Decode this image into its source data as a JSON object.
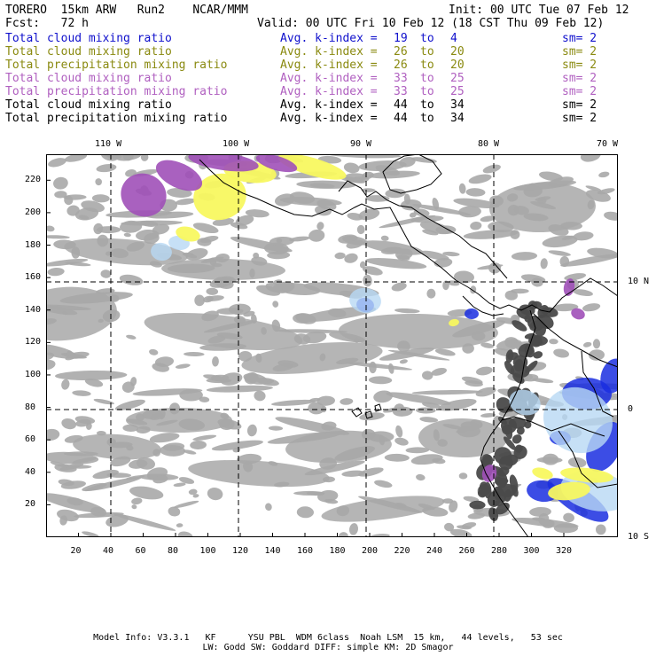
{
  "header": {
    "model": "TORERO  15km ARW   Run2    NCAR/MMM",
    "init": "Init: 00 UTC Tue 07 Feb 12",
    "fcst": "Fcst:   72 h",
    "valid": "Valid: 00 UTC Fri 10 Feb 12 (18 CST Thu 09 Feb 12)"
  },
  "legend": [
    {
      "field": "Total cloud mixing ratio",
      "avg": "Avg. k-index =",
      "from": "19",
      "to": "to",
      "end": "4",
      "sm": "sm= 2",
      "color": "#1010cc"
    },
    {
      "field": "Total cloud mixing ratio",
      "avg": "Avg. k-index =",
      "from": "26",
      "to": "to",
      "end": "20",
      "sm": "sm= 2",
      "color": "#8a8a10"
    },
    {
      "field": "Total precipitation mixing ratio",
      "avg": "Avg. k-index =",
      "from": "26",
      "to": "to",
      "end": "20",
      "sm": "sm= 2",
      "color": "#8a8a10"
    },
    {
      "field": "Total cloud mixing ratio",
      "avg": "Avg. k-index =",
      "from": "33",
      "to": "to",
      "end": "25",
      "sm": "sm= 2",
      "color": "#b060c0"
    },
    {
      "field": "Total precipitation mixing ratio",
      "avg": "Avg. k-index =",
      "from": "33",
      "to": "to",
      "end": "25",
      "sm": "sm= 2",
      "color": "#b060c0"
    },
    {
      "field": "Total cloud mixing ratio",
      "avg": "Avg. k-index =",
      "from": "44",
      "to": "to",
      "end": "34",
      "sm": "sm= 2",
      "color": "#000000"
    },
    {
      "field": "Total precipitation mixing ratio",
      "avg": "Avg. k-index =",
      "from": "44",
      "to": "to",
      "end": "34",
      "sm": "sm= 2",
      "color": "#000000"
    }
  ],
  "map": {
    "lon_labels": [
      "110 W",
      "100 W",
      "90 W",
      "80 W",
      "70 W"
    ],
    "lat_labels": [
      "10 N",
      "0",
      "10 S"
    ],
    "x_ticks": [
      "20",
      "40",
      "60",
      "80",
      "100",
      "120",
      "140",
      "160",
      "180",
      "200",
      "220",
      "240",
      "260",
      "280",
      "300",
      "320"
    ],
    "y_ticks": [
      "220",
      "200",
      "180",
      "160",
      "140",
      "120",
      "100",
      "80",
      "60",
      "40",
      "20"
    ],
    "colors": {
      "gray": "#a8a8a8",
      "dark": "#4a4a4a",
      "blue": "#1a2ee0",
      "lightblue": "#b8d8f4",
      "yellow": "#f8f860",
      "purple": "#a050b8"
    }
  },
  "footer": {
    "line1": "Model Info: V3.3.1   KF      YSU PBL  WDM 6class  Noah LSM  15 km,   44 levels,   53 sec",
    "line2": "LW: Godd SW: Goddard DIFF: simple KM: 2D Smagor"
  }
}
